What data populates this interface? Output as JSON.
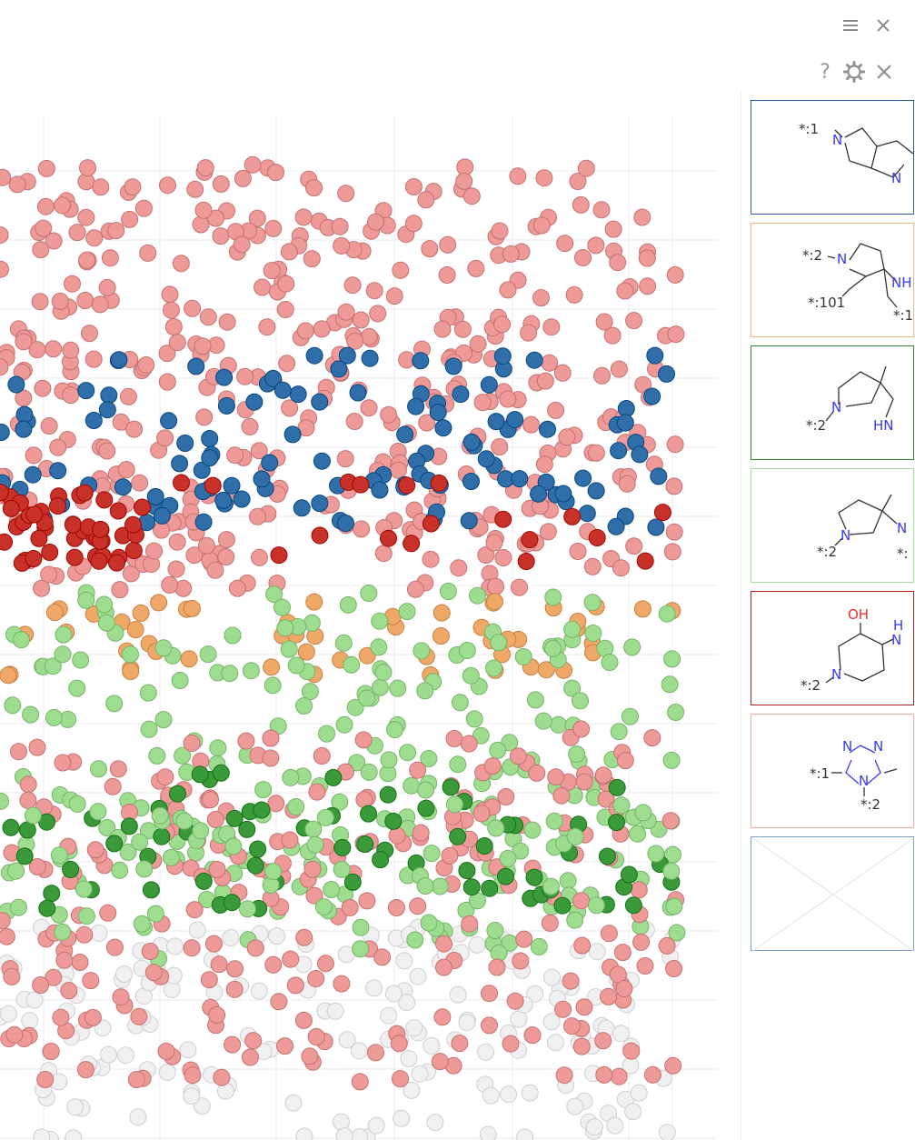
{
  "window": {
    "menu_icon": "hamburger-menu-icon",
    "close_icon": "close-icon"
  },
  "viewer_toolbar": {
    "help_label": "?",
    "settings_icon": "gear-icon",
    "close_icon": "close-icon"
  },
  "scatter": {
    "series_colors": {
      "salmon": "#ee9a98",
      "blue": "#2f6ea9",
      "red": "#c8302a",
      "orange": "#f0a868",
      "light_green": "#9edc90",
      "dark_green": "#3a9a3a",
      "gray": "#f0f0f0"
    }
  },
  "cards": [
    {
      "border_color": "#2f5fa0",
      "labels": {
        "a1": "*:1",
        "n1": "N",
        "n2": "N"
      }
    },
    {
      "border_color": "#f0b880",
      "labels": {
        "a1": "*:2",
        "n1": "N",
        "a2": "*:101",
        "n2": "NH",
        "a3": "*:1"
      }
    },
    {
      "border_color": "#3a8a3a",
      "labels": {
        "a1": "*:2",
        "n1": "N",
        "n2": "HN"
      }
    },
    {
      "border_color": "#a8dca0",
      "labels": {
        "a1": "*:2",
        "n1": "N",
        "n2": "N",
        "a2": "*:"
      }
    },
    {
      "border_color": "#b02020",
      "labels": {
        "oh": "OH",
        "a1": "*:2",
        "n1": "N",
        "n2": "H",
        "n3": "N"
      }
    },
    {
      "border_color": "#f0a8a8",
      "labels": {
        "a1": "*:1",
        "n1": "N",
        "n2": "N",
        "n3": "N",
        "a2": "*:2"
      }
    },
    {
      "border_color": "#7ba0c8",
      "labels": {}
    }
  ]
}
